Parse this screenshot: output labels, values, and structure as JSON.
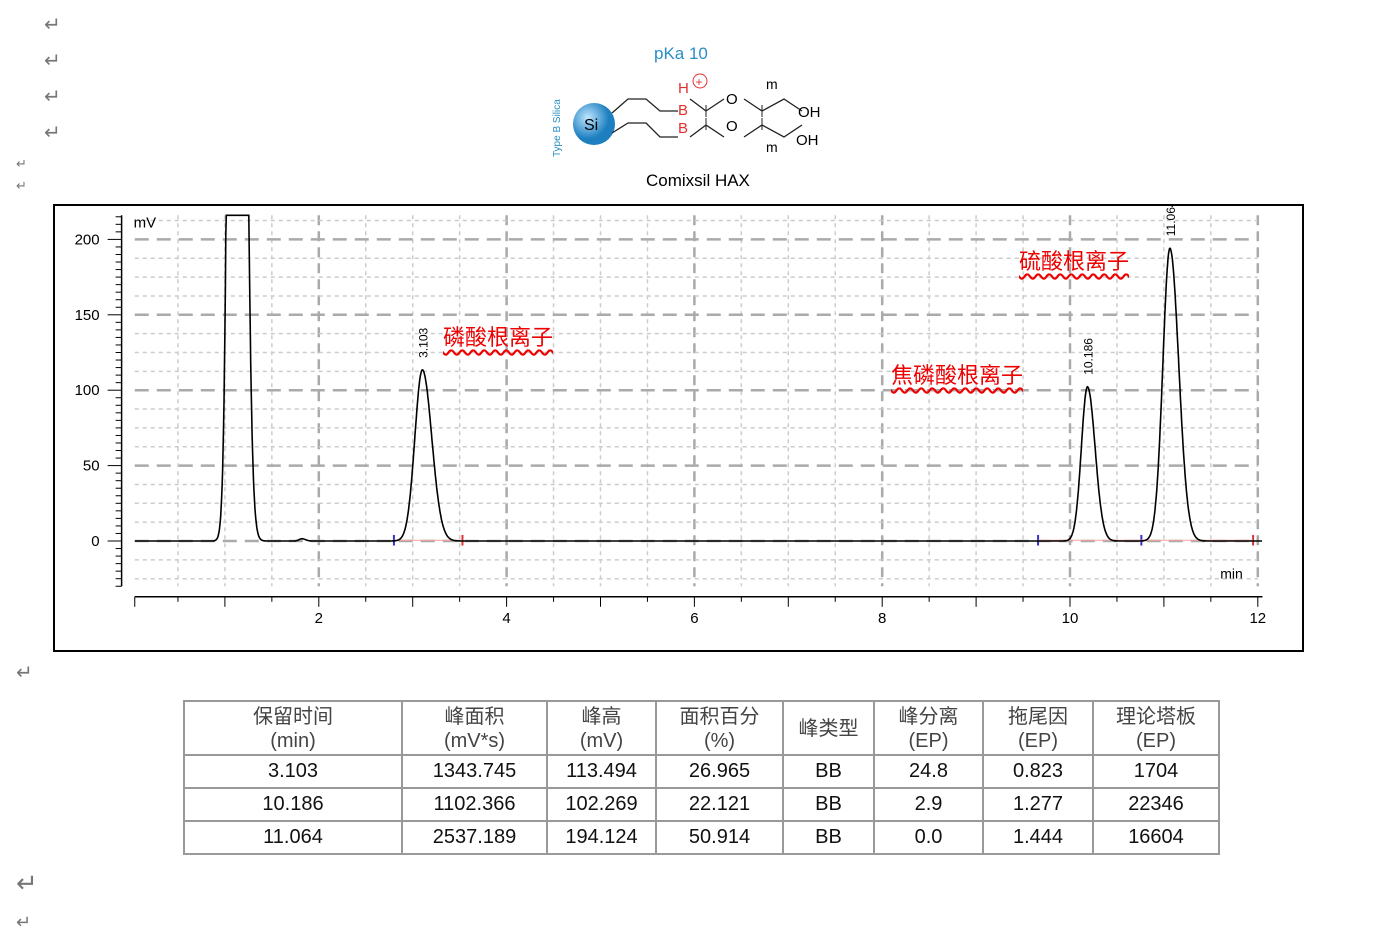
{
  "return_mark": "↵",
  "structure": {
    "pka": "pKa 10",
    "support": "Type B Silica",
    "si": "Si",
    "caption": "Comixsil HAX",
    "b": "B",
    "h": "H",
    "o": "O",
    "oh": "OH",
    "m": "m"
  },
  "annotations": {
    "phosphate": "磷酸根离子",
    "pyrophosphate": "焦磷酸根离子",
    "sulfate": "硫酸根离子"
  },
  "chart_data": {
    "type": "line",
    "ylabel": "mV",
    "xlabel": "min",
    "xlim": [
      0,
      12
    ],
    "ylim": [
      -30,
      216
    ],
    "xticks": [
      2,
      4,
      6,
      8,
      10,
      12
    ],
    "yticks": [
      0,
      50,
      100,
      150,
      200
    ],
    "grid": true,
    "line_color": "#000000",
    "peaks": [
      {
        "rt": 1.12,
        "height": 1500,
        "sigma": 0.055,
        "label": ""
      },
      {
        "rt": 1.82,
        "height": 1.5,
        "sigma": 0.03,
        "label": ""
      },
      {
        "rt": 3.103,
        "height": 113.494,
        "sigma": 0.08,
        "label": "3.103"
      },
      {
        "rt": 10.186,
        "height": 102.269,
        "sigma": 0.065,
        "label": "10.186"
      },
      {
        "rt": 11.064,
        "height": 194.124,
        "sigma": 0.075,
        "label": "11.064"
      }
    ]
  },
  "table": {
    "headers": [
      [
        "保留时间",
        "(min)"
      ],
      [
        "峰面积",
        "(mV*s)"
      ],
      [
        "峰高",
        "(mV)"
      ],
      [
        "面积百分",
        "(%)"
      ],
      [
        "峰类型",
        ""
      ],
      [
        "峰分离",
        "(EP)"
      ],
      [
        "拖尾因",
        "(EP)"
      ],
      [
        "理论塔板",
        "(EP)"
      ]
    ],
    "rows": [
      [
        "3.103",
        "1343.745",
        "113.494",
        "26.965",
        "BB",
        "24.8",
        "0.823",
        "1704"
      ],
      [
        "10.186",
        "1102.366",
        "102.269",
        "22.121",
        "BB",
        "2.9",
        "1.277",
        "22346"
      ],
      [
        "11.064",
        "2537.189",
        "194.124",
        "50.914",
        "BB",
        "0.0",
        "1.444",
        "16604"
      ]
    ]
  }
}
